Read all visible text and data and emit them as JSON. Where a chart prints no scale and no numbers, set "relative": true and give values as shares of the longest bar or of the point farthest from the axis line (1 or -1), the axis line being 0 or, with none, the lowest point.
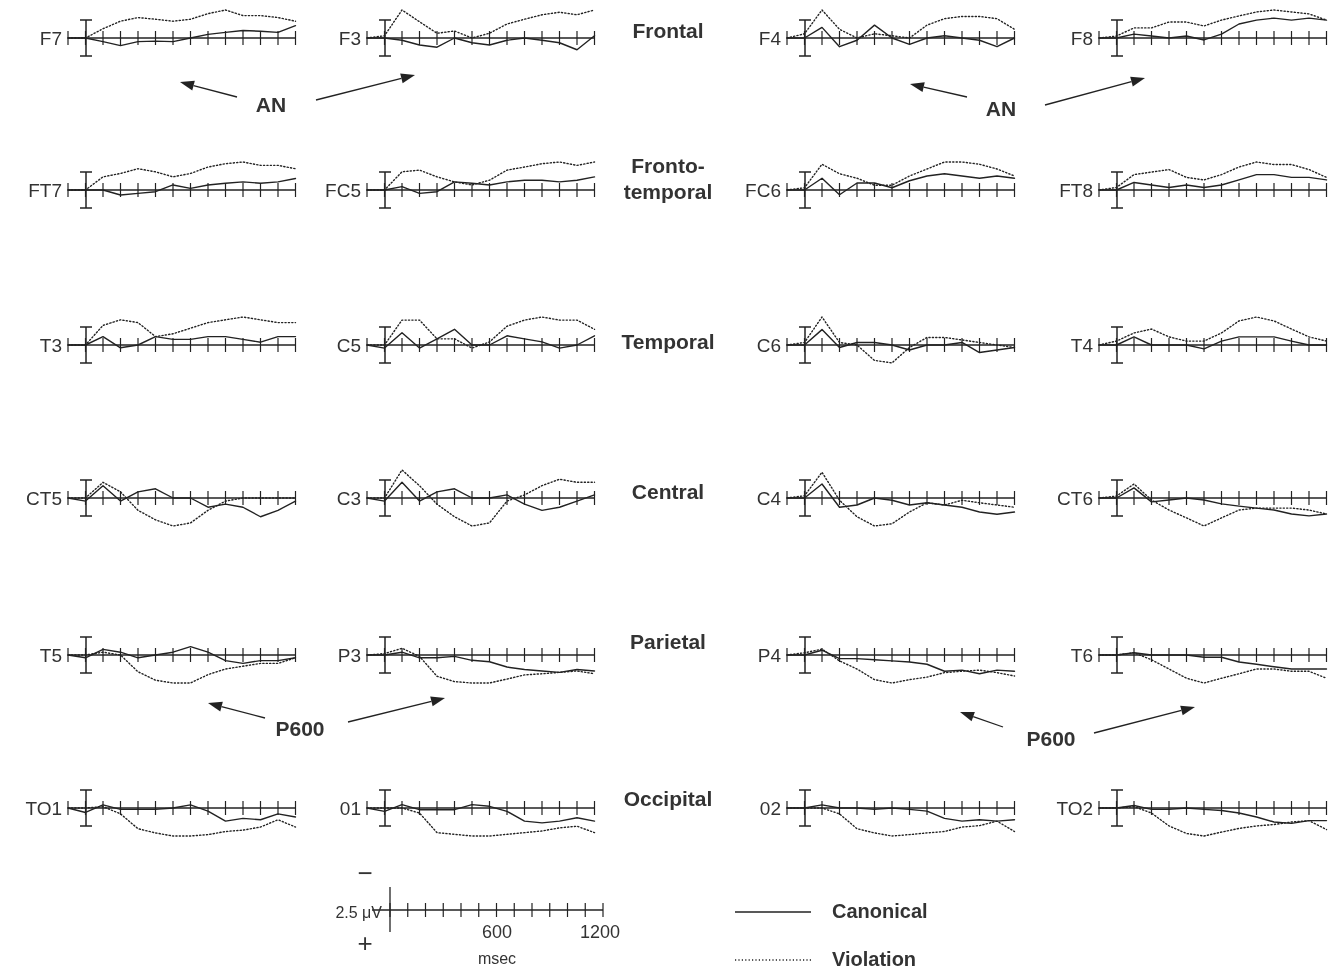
{
  "chart_data": [
    {
      "type": "line",
      "title": "F7",
      "relative": true,
      "categories": [
        null,
        null,
        null,
        null,
        null,
        null,
        null,
        null,
        null,
        null,
        null,
        null,
        null,
        null
      ],
      "series": [
        {
          "color": "#222222",
          "line_style": "solid",
          "values": [
            0,
            0,
            -0.13,
            -0.27,
            -0.13,
            -0.11,
            -0.13,
            0,
            0.13,
            0.2,
            0.27,
            0.24,
            0.2,
            0.44
          ]
        },
        {
          "color": "#222222",
          "line_style": "dotted",
          "values": [
            0,
            0,
            0.33,
            0.6,
            0.73,
            0.67,
            0.6,
            0.67,
            0.87,
            1,
            0.8,
            0.8,
            0.73,
            0.6
          ]
        }
      ]
    },
    {
      "type": "line",
      "title": "F3",
      "relative": true,
      "categories": [
        null,
        null,
        null,
        null,
        null,
        null,
        null,
        null,
        null,
        null,
        null,
        null,
        null,
        null
      ],
      "series": [
        {
          "color": "#222222",
          "line_style": "solid",
          "values": [
            0,
            0,
            -0.08,
            -0.25,
            -0.33,
            0,
            -0.17,
            -0.25,
            -0.08,
            0,
            -0.08,
            -0.17,
            -0.42,
            0.08
          ]
        },
        {
          "color": "#222222",
          "line_style": "dotted",
          "values": [
            0,
            0.08,
            1,
            0.58,
            0.17,
            0.25,
            0,
            0.17,
            0.5,
            0.67,
            0.83,
            0.92,
            0.83,
            1
          ]
        }
      ]
    },
    {
      "type": "line",
      "title": "F4",
      "relative": true,
      "categories": [
        null,
        null,
        null,
        null,
        null,
        null,
        null,
        null,
        null,
        null,
        null,
        null,
        null,
        null
      ],
      "series": [
        {
          "color": "#222222",
          "line_style": "solid",
          "values": [
            0,
            0,
            0.38,
            -0.31,
            -0.08,
            0.46,
            0,
            -0.23,
            0,
            0.08,
            0,
            -0.08,
            -0.31,
            0
          ]
        },
        {
          "color": "#222222",
          "line_style": "dotted",
          "values": [
            0,
            0.15,
            1,
            0.31,
            0,
            0.15,
            0.08,
            0,
            0.46,
            0.69,
            0.77,
            0.77,
            0.69,
            0.31
          ]
        }
      ]
    },
    {
      "type": "line",
      "title": "F8",
      "relative": true,
      "categories": [
        null,
        null,
        null,
        null,
        null,
        null,
        null,
        null,
        null,
        null,
        null,
        null,
        null,
        null
      ],
      "series": [
        {
          "color": "#222222",
          "line_style": "solid",
          "values": [
            0,
            0,
            0.14,
            0.07,
            0,
            0.07,
            -0.07,
            0.14,
            0.5,
            0.64,
            0.71,
            0.64,
            0.71,
            0.64
          ]
        },
        {
          "color": "#222222",
          "line_style": "dotted",
          "values": [
            0,
            0.07,
            0.36,
            0.36,
            0.57,
            0.57,
            0.43,
            0.64,
            0.79,
            0.93,
            1,
            0.93,
            0.86,
            0.64
          ]
        }
      ]
    },
    {
      "type": "line",
      "title": "FT7",
      "relative": true,
      "categories": [
        null,
        null,
        null,
        null,
        null,
        null,
        null,
        null,
        null,
        null,
        null,
        null,
        null,
        null
      ],
      "series": [
        {
          "color": "#222222",
          "line_style": "solid",
          "values": [
            0,
            0,
            0,
            -0.18,
            -0.12,
            -0.06,
            0.18,
            0.06,
            0.18,
            0.24,
            0.29,
            0.24,
            0.29,
            0.41
          ]
        },
        {
          "color": "#222222",
          "line_style": "dotted",
          "values": [
            0,
            0,
            0.47,
            0.59,
            0.76,
            0.65,
            0.47,
            0.59,
            0.82,
            0.94,
            1,
            0.88,
            0.88,
            0.76
          ]
        }
      ]
    },
    {
      "type": "line",
      "title": "FC5",
      "relative": true,
      "categories": [
        null,
        null,
        null,
        null,
        null,
        null,
        null,
        null,
        null,
        null,
        null,
        null,
        null,
        null
      ],
      "series": [
        {
          "color": "#222222",
          "line_style": "solid",
          "values": [
            0,
            0,
            0.12,
            -0.12,
            -0.06,
            0.29,
            0.24,
            0.18,
            0.29,
            0.35,
            0.35,
            0.29,
            0.35,
            0.47
          ]
        },
        {
          "color": "#222222",
          "line_style": "dotted",
          "values": [
            0,
            0,
            0.65,
            0.71,
            0.47,
            0.29,
            0.18,
            0.35,
            0.71,
            0.82,
            0.94,
            1,
            0.88,
            1
          ]
        }
      ]
    },
    {
      "type": "line",
      "title": "FC6",
      "relative": true,
      "categories": [
        null,
        null,
        null,
        null,
        null,
        null,
        null,
        null,
        null,
        null,
        null,
        null,
        null,
        null
      ],
      "series": [
        {
          "color": "#222222",
          "line_style": "solid",
          "values": [
            0,
            0,
            0.42,
            -0.17,
            0.25,
            0.25,
            0.08,
            0.33,
            0.5,
            0.58,
            0.5,
            0.42,
            0.5,
            0.42
          ]
        },
        {
          "color": "#222222",
          "line_style": "dotted",
          "values": [
            0,
            0.08,
            0.92,
            0.58,
            0.42,
            0.17,
            0.17,
            0.5,
            0.75,
            1,
            1,
            0.92,
            0.75,
            0.5
          ]
        }
      ]
    },
    {
      "type": "line",
      "title": "FT8",
      "relative": true,
      "categories": [
        null,
        null,
        null,
        null,
        null,
        null,
        null,
        null,
        null,
        null,
        null,
        null,
        null,
        null
      ],
      "series": [
        {
          "color": "#222222",
          "line_style": "solid",
          "values": [
            0,
            0,
            0.27,
            0.18,
            0.09,
            0.18,
            0.09,
            0.18,
            0.36,
            0.55,
            0.55,
            0.45,
            0.45,
            0.36
          ]
        },
        {
          "color": "#222222",
          "line_style": "dotted",
          "values": [
            0,
            0.09,
            0.55,
            0.64,
            0.73,
            0.45,
            0.36,
            0.55,
            0.82,
            1,
            0.91,
            0.91,
            0.73,
            0.45
          ]
        }
      ]
    },
    {
      "type": "line",
      "title": "T3",
      "relative": true,
      "categories": [
        null,
        null,
        null,
        null,
        null,
        null,
        null,
        null,
        null,
        null,
        null,
        null,
        null,
        null
      ],
      "series": [
        {
          "color": "#222222",
          "line_style": "solid",
          "values": [
            0,
            0,
            0.3,
            -0.1,
            0,
            0.3,
            0.2,
            0.2,
            0.3,
            0.3,
            0.2,
            0.1,
            0.3,
            0.3
          ]
        },
        {
          "color": "#222222",
          "line_style": "dotted",
          "values": [
            0,
            0,
            0.7,
            0.9,
            0.8,
            0.3,
            0.4,
            0.6,
            0.8,
            0.9,
            1,
            0.9,
            0.8,
            0.8
          ]
        }
      ]
    },
    {
      "type": "line",
      "title": "C5",
      "relative": true,
      "categories": [
        null,
        null,
        null,
        null,
        null,
        null,
        null,
        null,
        null,
        null,
        null,
        null,
        null,
        null
      ],
      "series": [
        {
          "color": "#222222",
          "line_style": "solid",
          "values": [
            0,
            -0.11,
            0.44,
            -0.11,
            0.22,
            0.56,
            0,
            0,
            0.33,
            0.22,
            0.11,
            -0.11,
            0,
            0.33
          ]
        },
        {
          "color": "#222222",
          "line_style": "dotted",
          "values": [
            0,
            0,
            0.89,
            0.89,
            0.22,
            0.22,
            -0.11,
            0.11,
            0.67,
            0.89,
            1,
            0.89,
            0.89,
            0.56
          ]
        }
      ]
    },
    {
      "type": "line",
      "title": "C6",
      "relative": true,
      "categories": [
        null,
        null,
        null,
        null,
        null,
        null,
        null,
        null,
        null,
        null,
        null,
        null,
        null,
        null
      ],
      "series": [
        {
          "color": "#222222",
          "line_style": "solid",
          "values": [
            0,
            0,
            0.55,
            -0.09,
            0.09,
            0.09,
            0,
            -0.18,
            0,
            0,
            0.09,
            -0.27,
            -0.18,
            -0.09
          ]
        },
        {
          "color": "#222222",
          "line_style": "dotted",
          "values": [
            0,
            0.09,
            1,
            0.09,
            0,
            -0.55,
            -0.64,
            -0.09,
            0.27,
            0.27,
            0.18,
            0.09,
            0,
            -0.09
          ]
        }
      ]
    },
    {
      "type": "line",
      "title": "T4",
      "relative": true,
      "categories": [
        null,
        null,
        null,
        null,
        null,
        null,
        null,
        null,
        null,
        null,
        null,
        null,
        null,
        null
      ],
      "series": [
        {
          "color": "#222222",
          "line_style": "solid",
          "values": [
            0,
            0,
            0.29,
            0,
            0,
            0,
            -0.14,
            0.14,
            0.29,
            0.29,
            0.29,
            0.14,
            0,
            0
          ]
        },
        {
          "color": "#222222",
          "line_style": "dotted",
          "values": [
            0,
            0.14,
            0.43,
            0.57,
            0.29,
            0.14,
            0.14,
            0.43,
            0.86,
            1,
            0.86,
            0.57,
            0.29,
            0.14
          ]
        }
      ]
    },
    {
      "type": "line",
      "title": "CT5",
      "relative": true,
      "categories": [
        null,
        null,
        null,
        null,
        null,
        null,
        null,
        null,
        null,
        null,
        null,
        null,
        null,
        null
      ],
      "series": [
        {
          "color": "#222222",
          "line_style": "solid",
          "values": [
            0,
            -0.11,
            0.44,
            -0.11,
            0.22,
            0.33,
            0,
            0,
            -0.33,
            -0.22,
            -0.33,
            -0.67,
            -0.44,
            -0.11
          ]
        },
        {
          "color": "#222222",
          "line_style": "dotted",
          "values": [
            0,
            0,
            0.56,
            0.22,
            -0.44,
            -0.78,
            -1,
            -0.89,
            -0.44,
            -0.11,
            0,
            0,
            0,
            0
          ]
        }
      ]
    },
    {
      "type": "line",
      "title": "C3",
      "relative": true,
      "categories": [
        null,
        null,
        null,
        null,
        null,
        null,
        null,
        null,
        null,
        null,
        null,
        null,
        null,
        null
      ],
      "series": [
        {
          "color": "#222222",
          "line_style": "solid",
          "values": [
            0,
            -0.11,
            0.56,
            -0.11,
            0.22,
            0.33,
            0,
            0,
            0.11,
            -0.22,
            -0.44,
            -0.33,
            -0.11,
            0.11
          ]
        },
        {
          "color": "#222222",
          "line_style": "dotted",
          "values": [
            0,
            0,
            1,
            0.44,
            -0.22,
            -0.67,
            -1,
            -0.89,
            -0.11,
            0.11,
            0.44,
            0.67,
            0.56,
            0.56
          ]
        }
      ]
    },
    {
      "type": "line",
      "title": "C4",
      "relative": true,
      "categories": [
        null,
        null,
        null,
        null,
        null,
        null,
        null,
        null,
        null,
        null,
        null,
        null,
        null,
        null
      ],
      "series": [
        {
          "color": "#222222",
          "line_style": "solid",
          "values": [
            0,
            0,
            0.5,
            -0.33,
            -0.25,
            0,
            -0.08,
            -0.25,
            -0.17,
            -0.25,
            -0.33,
            -0.5,
            -0.58,
            -0.5
          ]
        },
        {
          "color": "#222222",
          "line_style": "dotted",
          "values": [
            0,
            0.08,
            0.92,
            -0.08,
            -0.67,
            -1,
            -0.92,
            -0.5,
            -0.17,
            -0.25,
            -0.08,
            -0.17,
            -0.25,
            -0.33
          ]
        }
      ]
    },
    {
      "type": "line",
      "title": "CT6",
      "relative": true,
      "categories": [
        null,
        null,
        null,
        null,
        null,
        null,
        null,
        null,
        null,
        null,
        null,
        null,
        null,
        null
      ],
      "series": [
        {
          "color": "#222222",
          "line_style": "solid",
          "values": [
            0,
            0,
            0.36,
            -0.14,
            -0.07,
            0,
            -0.07,
            -0.21,
            -0.29,
            -0.36,
            -0.43,
            -0.57,
            -0.64,
            -0.57
          ]
        },
        {
          "color": "#222222",
          "line_style": "dotted",
          "values": [
            0,
            0.07,
            0.5,
            -0.07,
            -0.43,
            -0.71,
            -1,
            -0.71,
            -0.43,
            -0.36,
            -0.36,
            -0.36,
            -0.43,
            -0.57
          ]
        }
      ]
    },
    {
      "type": "line",
      "title": "T5",
      "relative": true,
      "categories": [
        null,
        null,
        null,
        null,
        null,
        null,
        null,
        null,
        null,
        null,
        null,
        null,
        null,
        null
      ],
      "series": [
        {
          "color": "#222222",
          "line_style": "solid",
          "values": [
            0,
            -0.1,
            0.2,
            0.1,
            -0.1,
            0,
            0.1,
            0.3,
            0.1,
            -0.2,
            -0.3,
            -0.2,
            -0.2,
            -0.1
          ]
        },
        {
          "color": "#222222",
          "line_style": "dotted",
          "values": [
            0,
            0,
            0.1,
            0,
            -0.6,
            -0.9,
            -1,
            -1,
            -0.7,
            -0.5,
            -0.4,
            -0.3,
            -0.3,
            -0.1
          ]
        }
      ]
    },
    {
      "type": "line",
      "title": "P3",
      "relative": true,
      "categories": [
        null,
        null,
        null,
        null,
        null,
        null,
        null,
        null,
        null,
        null,
        null,
        null,
        null,
        null
      ],
      "series": [
        {
          "color": "#222222",
          "line_style": "solid",
          "values": [
            0,
            0,
            0.1,
            -0.1,
            -0.1,
            -0.05,
            -0.19,
            -0.24,
            -0.43,
            -0.52,
            -0.57,
            -0.62,
            -0.52,
            -0.57
          ]
        },
        {
          "color": "#222222",
          "line_style": "dotted",
          "values": [
            0,
            0.05,
            0.24,
            -0.05,
            -0.76,
            -0.95,
            -1,
            -1,
            -0.86,
            -0.71,
            -0.67,
            -0.62,
            -0.57,
            -0.67
          ]
        }
      ]
    },
    {
      "type": "line",
      "title": "P4",
      "relative": true,
      "categories": [
        null,
        null,
        null,
        null,
        null,
        null,
        null,
        null,
        null,
        null,
        null,
        null,
        null,
        null
      ],
      "series": [
        {
          "color": "#222222",
          "line_style": "solid",
          "values": [
            0,
            0,
            0.17,
            -0.13,
            -0.13,
            -0.17,
            -0.21,
            -0.25,
            -0.33,
            -0.58,
            -0.54,
            -0.67,
            -0.54,
            -0.58
          ]
        },
        {
          "color": "#222222",
          "line_style": "dotted",
          "values": [
            0,
            0.08,
            0.21,
            -0.21,
            -0.5,
            -0.88,
            -1,
            -0.88,
            -0.79,
            -0.63,
            -0.58,
            -0.54,
            -0.63,
            -0.75
          ]
        }
      ]
    },
    {
      "type": "line",
      "title": "T6",
      "relative": true,
      "categories": [
        null,
        null,
        null,
        null,
        null,
        null,
        null,
        null,
        null,
        null,
        null,
        null,
        null,
        null
      ],
      "series": [
        {
          "color": "#222222",
          "line_style": "solid",
          "values": [
            0,
            0,
            0.08,
            0,
            0,
            0,
            -0.08,
            -0.08,
            -0.25,
            -0.33,
            -0.42,
            -0.5,
            -0.5,
            -0.5
          ]
        },
        {
          "color": "#222222",
          "line_style": "dotted",
          "values": [
            0,
            0,
            0.08,
            -0.17,
            -0.5,
            -0.83,
            -1,
            -0.83,
            -0.67,
            -0.5,
            -0.5,
            -0.58,
            -0.58,
            -0.83
          ]
        }
      ]
    },
    {
      "type": "line",
      "title": "TO1",
      "relative": true,
      "categories": [
        null,
        null,
        null,
        null,
        null,
        null,
        null,
        null,
        null,
        null,
        null,
        null,
        null,
        null
      ],
      "series": [
        {
          "color": "#222222",
          "line_style": "solid",
          "values": [
            0,
            -0.16,
            0.11,
            -0.05,
            -0.05,
            -0.05,
            0,
            0.11,
            -0.11,
            -0.47,
            -0.37,
            -0.42,
            -0.21,
            -0.32
          ]
        },
        {
          "color": "#222222",
          "line_style": "dotted",
          "values": [
            0,
            0,
            0.05,
            -0.21,
            -0.74,
            -0.89,
            -1,
            -1,
            -0.95,
            -0.84,
            -0.79,
            -0.68,
            -0.42,
            -0.68
          ]
        }
      ]
    },
    {
      "type": "line",
      "title": "01",
      "relative": true,
      "categories": [
        null,
        null,
        null,
        null,
        null,
        null,
        null,
        null,
        null,
        null,
        null,
        null,
        null,
        null
      ],
      "series": [
        {
          "color": "#222222",
          "line_style": "solid",
          "values": [
            0,
            -0.12,
            0.12,
            -0.06,
            -0.06,
            -0.06,
            0.12,
            0.06,
            -0.12,
            -0.47,
            -0.53,
            -0.47,
            -0.35,
            -0.47
          ]
        },
        {
          "color": "#222222",
          "line_style": "dotted",
          "values": [
            0,
            0,
            0,
            -0.18,
            -0.88,
            -0.94,
            -1,
            -1,
            -0.94,
            -0.88,
            -0.82,
            -0.71,
            -0.65,
            -0.88
          ]
        }
      ]
    },
    {
      "type": "line",
      "title": "02",
      "relative": true,
      "categories": [
        null,
        null,
        null,
        null,
        null,
        null,
        null,
        null,
        null,
        null,
        null,
        null,
        null,
        null
      ],
      "series": [
        {
          "color": "#222222",
          "line_style": "solid",
          "values": [
            0,
            0,
            0.11,
            0,
            0,
            -0.05,
            0,
            -0.05,
            -0.11,
            -0.37,
            -0.47,
            -0.42,
            -0.47,
            -0.42
          ]
        },
        {
          "color": "#222222",
          "line_style": "dotted",
          "values": [
            0,
            0,
            0,
            -0.21,
            -0.74,
            -0.89,
            -1,
            -0.95,
            -0.89,
            -0.84,
            -0.68,
            -0.63,
            -0.47,
            -0.84
          ]
        }
      ]
    },
    {
      "type": "line",
      "title": "TO2",
      "relative": true,
      "categories": [
        null,
        null,
        null,
        null,
        null,
        null,
        null,
        null,
        null,
        null,
        null,
        null,
        null,
        null
      ],
      "series": [
        {
          "color": "#222222",
          "line_style": "solid",
          "values": [
            0,
            0,
            0.09,
            -0.05,
            -0.05,
            0,
            -0.05,
            -0.09,
            -0.18,
            -0.32,
            -0.5,
            -0.55,
            -0.45,
            -0.45
          ]
        },
        {
          "color": "#222222",
          "line_style": "dotted",
          "values": [
            0,
            0,
            0.05,
            -0.18,
            -0.64,
            -0.91,
            -1,
            -0.86,
            -0.73,
            -0.64,
            -0.59,
            -0.5,
            -0.45,
            -0.77
          ]
        }
      ]
    },
    {
      "type": "other",
      "annotations": [
        "Frontal",
        "Fronto-\ntemporal",
        "Temporal",
        "Central",
        "Parietal",
        "Occipital",
        "AN",
        "AN",
        "P600",
        "P600",
        "2.5 μV",
        "600",
        "1200",
        "msec",
        "−",
        "+",
        "Canonical",
        "Violation"
      ]
    }
  ]
}
